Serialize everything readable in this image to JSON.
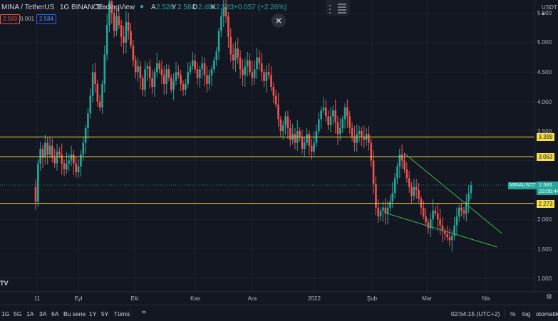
{
  "header": {
    "symbol": "MINA / TetherUS",
    "interval": "1G",
    "exchange": "BINANCE",
    "brand": "TradingView",
    "o_label": "A",
    "o_value": "2.528",
    "h_label": "Y",
    "h_value": "2.584",
    "l_label": "D",
    "l_value": "2.484",
    "c_label": "K",
    "c_value": "2.583",
    "change": "+0.057 (+2.26%)"
  },
  "bidask": {
    "sell": "2.583",
    "spread": "0.001",
    "buy": "2.584"
  },
  "currency": "USDT",
  "price_axis": {
    "ticks": [
      "5.500",
      "5.000",
      "4.500",
      "4.000",
      "3.500",
      "2.000",
      "1.500",
      "1.000"
    ],
    "levels": [
      "3.399",
      "3.063",
      "2.273"
    ],
    "last_symbol": "MINAUSDT",
    "last_price": "2.583",
    "countdown": "23:05:44"
  },
  "time_axis": [
    "11",
    "Eyl",
    "Eki",
    "Kas",
    "Ara",
    "2022",
    "Şub",
    "Mar",
    "Nis"
  ],
  "bottom": {
    "ranges": [
      "1G",
      "5G",
      "1A",
      "3A",
      "6A",
      "Bu sene",
      "1Y",
      "5Y",
      "Tümü"
    ],
    "clock": "02:54:15 (UTC+2)",
    "percent": "%",
    "log": "log",
    "auto": "otomatik"
  },
  "colors": {
    "up": "#26a69a",
    "down": "#ef5350",
    "level": "#f7e04b",
    "trend": "#4caf50",
    "bg": "#131722"
  },
  "chart_data": {
    "type": "candlestick",
    "x_start": "2021-08-11",
    "x_end": "2022-03-20",
    "ylim": [
      0.85,
      5.8
    ],
    "closes": [
      2.3,
      2.95,
      3.2,
      3.05,
      3.3,
      3.1,
      3.25,
      3.05,
      2.95,
      3.15,
      3.1,
      2.95,
      2.85,
      2.95,
      3.0,
      3.1,
      2.95,
      2.8,
      2.9,
      3.1,
      3.3,
      3.55,
      3.8,
      4.1,
      4.5,
      4.3,
      4.0,
      3.9,
      4.3,
      4.8,
      5.3,
      5.7,
      5.5,
      5.2,
      5.45,
      5.3,
      5.1,
      5.0,
      5.35,
      5.2,
      4.95,
      4.7,
      4.5,
      4.6,
      4.4,
      4.2,
      4.55,
      4.6,
      4.4,
      4.25,
      4.5,
      4.65,
      4.55,
      4.45,
      4.3,
      4.55,
      4.4,
      4.2,
      4.35,
      4.5,
      4.45,
      4.3,
      4.2,
      4.3,
      4.5,
      4.6,
      4.7,
      4.55,
      4.4,
      4.55,
      4.65,
      4.45,
      4.3,
      4.45,
      4.55,
      4.7,
      4.85,
      5.2,
      5.45,
      5.6,
      5.45,
      5.1,
      4.8,
      4.7,
      4.9,
      4.75,
      4.55,
      4.45,
      4.6,
      4.7,
      4.5,
      4.4,
      4.55,
      4.75,
      4.65,
      4.5,
      4.35,
      4.5,
      4.45,
      4.25,
      4.1,
      3.95,
      3.7,
      3.5,
      3.6,
      3.75,
      3.55,
      3.35,
      3.45,
      3.3,
      3.5,
      3.4,
      3.2,
      3.3,
      3.45,
      3.25,
      3.15,
      3.3,
      3.5,
      3.7,
      3.85,
      3.9,
      3.75,
      3.6,
      3.75,
      3.85,
      3.65,
      3.45,
      3.55,
      3.7,
      3.9,
      3.75,
      3.55,
      3.4,
      3.3,
      3.45,
      3.5,
      3.4,
      3.35,
      3.45,
      3.3,
      3.0,
      2.6,
      2.2,
      2.05,
      2.15,
      2.2,
      2.1,
      2.2,
      2.3,
      2.45,
      2.7,
      2.9,
      3.1,
      3.0,
      2.85,
      2.7,
      2.55,
      2.4,
      2.55,
      2.5,
      2.35,
      2.2,
      2.05,
      1.95,
      1.85,
      2.0,
      2.15,
      2.1,
      2.0,
      1.9,
      1.8,
      1.75,
      1.7,
      1.65,
      1.72,
      1.9,
      2.05,
      2.2,
      2.15,
      2.1,
      2.3,
      2.45,
      2.583
    ],
    "horizontal_levels": [
      3.399,
      3.063,
      2.273
    ],
    "last_price": 2.583
  }
}
